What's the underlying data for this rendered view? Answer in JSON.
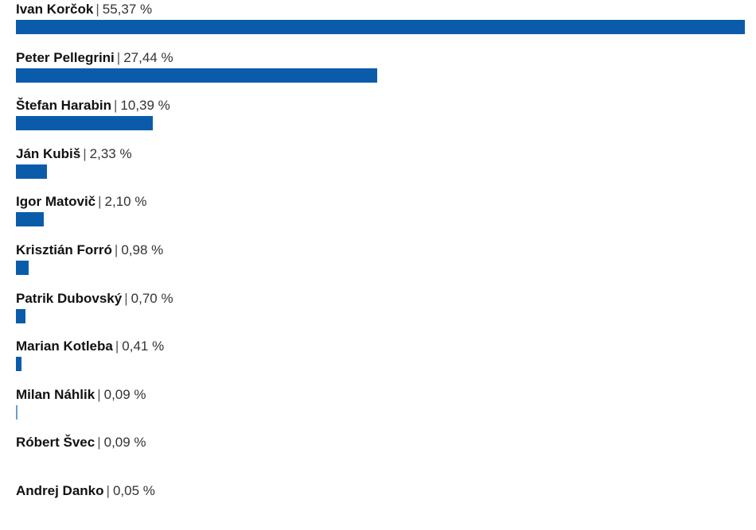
{
  "chart_data": {
    "type": "bar",
    "orientation": "horizontal",
    "categories": [
      "Ivan Korčok",
      "Peter Pellegrini",
      "Štefan Harabin",
      "Ján Kubiš",
      "Igor Matovič",
      "Krisztián Forró",
      "Patrik Dubovský",
      "Marian Kotleba",
      "Milan Náhlik",
      "Róbert Švec",
      "Andrej Danko"
    ],
    "values": [
      55.37,
      27.44,
      10.39,
      2.33,
      2.1,
      0.98,
      0.7,
      0.41,
      0.09,
      0.09,
      0.05
    ],
    "value_labels": [
      "55,37 %",
      "27,44 %",
      "10,39 %",
      "2,33 %",
      "2,10 %",
      "0,98 %",
      "0,70 %",
      "0,41 %",
      "0,09 %",
      "0,09 %",
      "0,05 %"
    ],
    "xlim": [
      0,
      55.37
    ],
    "bar_color": "#0a5cab",
    "grid": false
  }
}
